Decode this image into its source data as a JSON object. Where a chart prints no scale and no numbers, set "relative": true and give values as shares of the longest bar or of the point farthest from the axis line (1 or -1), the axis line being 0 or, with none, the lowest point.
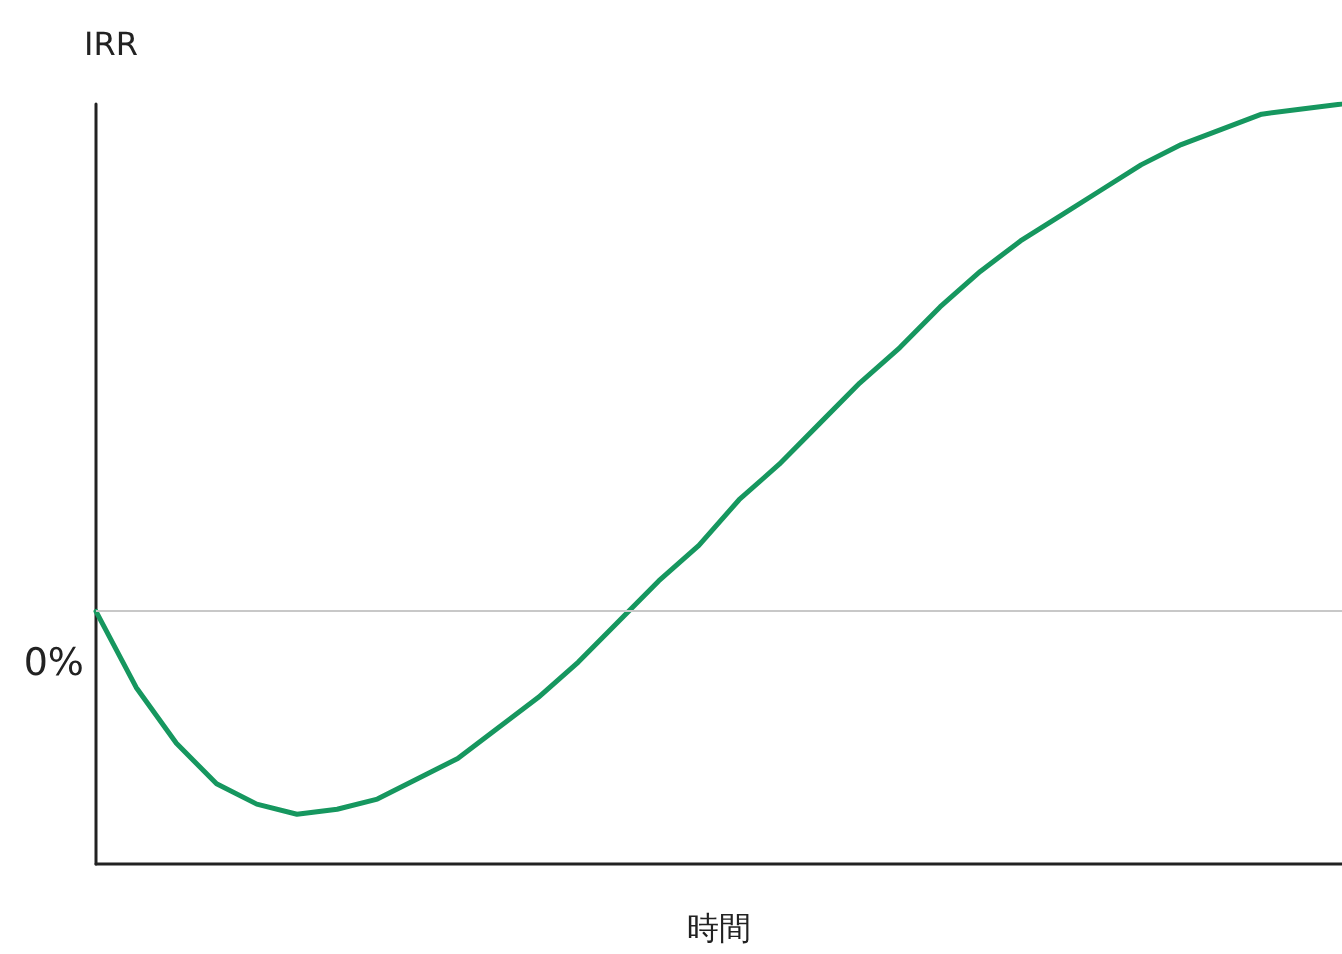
{
  "chart_data": {
    "type": "line",
    "relative": true,
    "ylabel": "IRR",
    "xlabel": "時間",
    "categories": [
      null,
      null,
      null,
      null,
      null,
      null,
      null,
      null,
      null,
      null,
      null,
      null,
      null,
      null,
      null,
      null,
      null,
      null,
      null,
      null,
      null,
      null,
      null,
      null,
      null,
      null,
      null,
      null,
      null,
      null,
      null,
      null
    ],
    "series": [
      {
        "color": "#16975f",
        "values": [
          0,
          -0.15,
          -0.26,
          -0.34,
          -0.38,
          -0.4,
          -0.39,
          -0.37,
          -0.33,
          -0.29,
          -0.23,
          -0.17,
          -0.1,
          -0.02,
          0.06,
          0.13,
          0.22,
          0.29,
          0.37,
          0.45,
          0.52,
          0.6,
          0.67,
          0.73,
          0.78,
          0.83,
          0.88,
          0.92,
          0.95,
          0.98,
          0.99,
          1
        ]
      }
    ],
    "ref_lines": [
      {
        "axis": "y",
        "value": 0,
        "label": "0%",
        "color": "#c8c8c8"
      }
    ],
    "grid": false,
    "marker": "none",
    "line_style": "solid"
  }
}
